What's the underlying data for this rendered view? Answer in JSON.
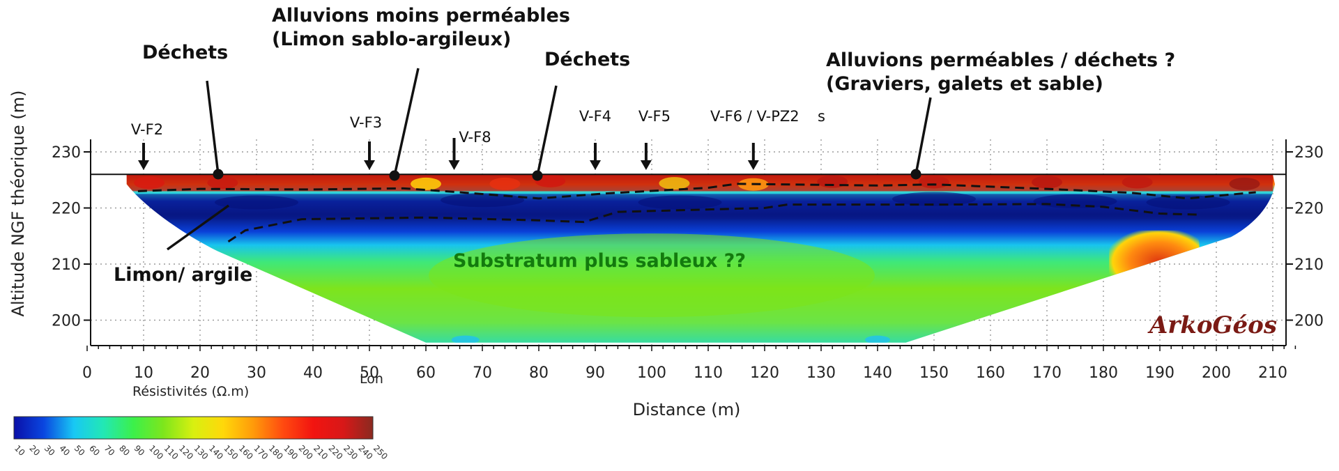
{
  "chart_data": {
    "type": "heatmap",
    "title": "",
    "xlabel": "Distance (m)",
    "ylabel": "Altitude NGF théorique (m)",
    "xlim": [
      0,
      215
    ],
    "ylim": [
      195,
      232
    ],
    "x_ticks": [
      "0",
      "10",
      "20",
      "30",
      "40",
      "50",
      "60",
      "70",
      "80",
      "90",
      "100",
      "110",
      "120",
      "130",
      "140",
      "150",
      "160",
      "170",
      "180",
      "190",
      "200",
      "210"
    ],
    "y_ticks": [
      "200",
      "210",
      "220",
      "230"
    ],
    "grid": true,
    "profile": {
      "start_distance": 7,
      "end_distance": 210,
      "surface_altitude": 226,
      "bottom_altitude": 196,
      "bottom_left_distance": 60,
      "bottom_right_distance": 145
    },
    "zones": [
      {
        "name": "surface",
        "color": "#c0180e",
        "top": 226,
        "bottom": 223
      },
      {
        "name": "conductive",
        "color": "#0a1a8a",
        "top": 223,
        "bottom": 218
      },
      {
        "name": "substratum",
        "color": "#7be31a",
        "top": 218,
        "bottom": 196
      },
      {
        "name": "anomaly",
        "color": "#e8400e",
        "x_from": 181,
        "x_to": 197,
        "top": 216,
        "bottom": 206
      }
    ],
    "boreholes": [
      {
        "label": "V-F2",
        "distance": 10
      },
      {
        "label": "V-F3",
        "distance": 50
      },
      {
        "label": "V-F8",
        "distance": 65
      },
      {
        "label": "V-F4",
        "distance": 90
      },
      {
        "label": "V-F5",
        "distance": 99
      },
      {
        "label": "V-F6 / V-PZ2",
        "distance": 118
      }
    ],
    "annotations": [
      {
        "lines": [
          "Déchets"
        ],
        "color": "#111111"
      },
      {
        "lines": [
          "Alluvions moins perméables",
          "(Limon sablo-argileux)"
        ],
        "color": "#111111"
      },
      {
        "lines": [
          "Déchets"
        ],
        "color": "#111111"
      },
      {
        "lines": [
          "Alluvions perméables / déchets ?",
          "(Graviers, galets et sable)"
        ],
        "color": "#111111"
      },
      {
        "lines": [
          "Limon/ argile"
        ],
        "color": "#111111"
      },
      {
        "lines": [
          "Substratum plus sableux ??"
        ],
        "color": "#137a0e"
      }
    ],
    "colorbar": {
      "label": "Résistivités (Ω.m)",
      "ticks": [
        "10",
        "20",
        "30",
        "40",
        "50",
        "60",
        "70",
        "80",
        "90",
        "100",
        "110",
        "120",
        "130",
        "140",
        "150",
        "160",
        "170",
        "180",
        "190",
        "200",
        "210",
        "220",
        "230",
        "240",
        "250"
      ],
      "colors": [
        "#0a10a8",
        "#0a46e0",
        "#18c8f4",
        "#22e8b4",
        "#3cf04a",
        "#7ee61c",
        "#d8f010",
        "#ffd80a",
        "#ff9a0a",
        "#ff4a10",
        "#f21410",
        "#d81818",
        "#8a2a20"
      ]
    },
    "stray_marks": [
      "s",
      "Lon"
    ],
    "logo": "ArkoGéos"
  }
}
